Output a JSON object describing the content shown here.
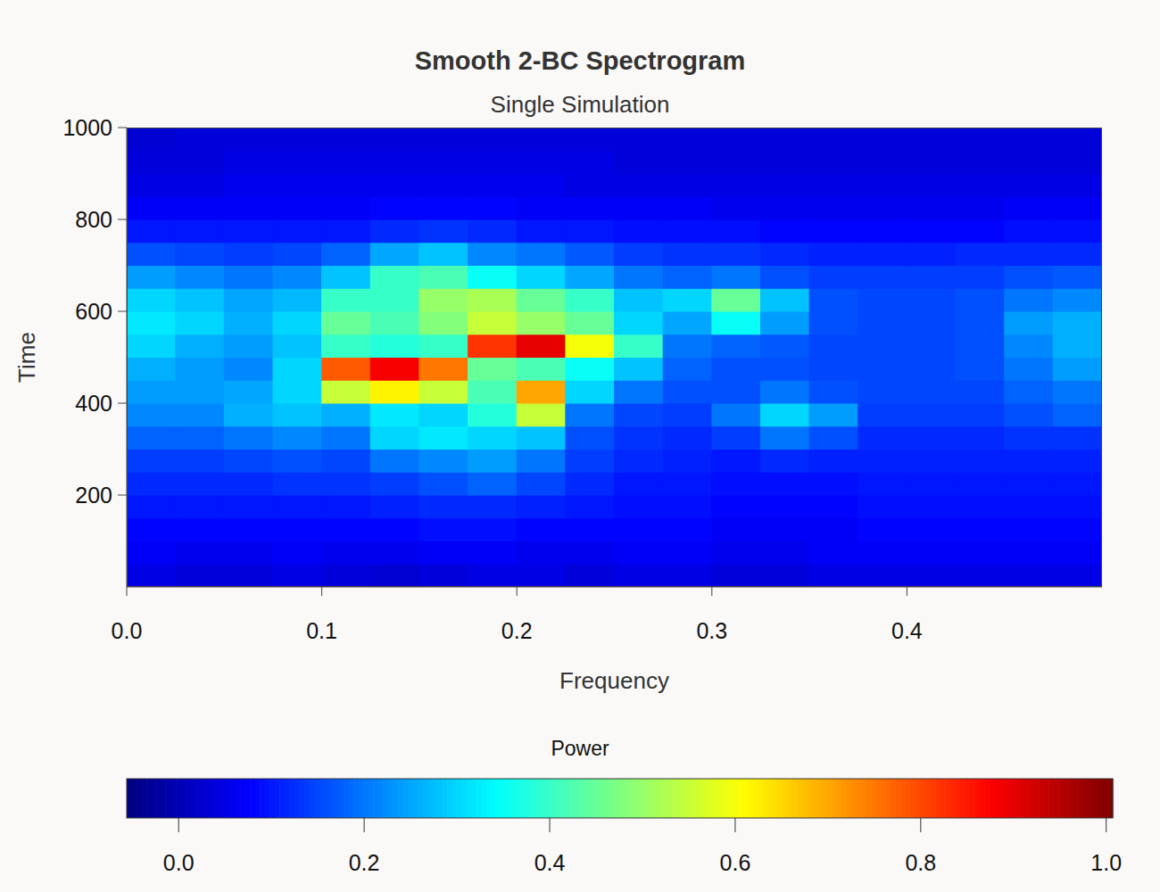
{
  "chart_data": {
    "type": "heatmap",
    "title": "Smooth 2-BC Spectrogram",
    "subtitle": "Single Simulation",
    "x_label": "Frequency",
    "y_label": "Time",
    "colorbar_title": "Power",
    "xlim": [
      0,
      0.5
    ],
    "xticks": [
      {
        "value": 0,
        "label": "0.0"
      },
      0.1,
      0.2,
      0.3,
      0.4
    ],
    "ylim": [
      0,
      1000
    ],
    "yticks": [
      200,
      400,
      600,
      800,
      1000
    ],
    "colorbar_range": [
      -0.056,
      1.007
    ],
    "colorbar_ticks": [
      {
        "value": 0,
        "label": "0.0"
      },
      0.2,
      0.4,
      0.6,
      0.8,
      {
        "value": 1,
        "label": "1.0"
      }
    ],
    "x": [
      0.0125,
      0.0375,
      0.0625,
      0.0875,
      0.1125,
      0.1375,
      0.1625,
      0.1875,
      0.2125,
      0.2375,
      0.2625,
      0.2875,
      0.3125,
      0.3375,
      0.3625,
      0.3875,
      0.4125,
      0.4375,
      0.4625,
      0.4875
    ],
    "y": [
      25,
      75,
      125,
      175,
      225,
      275,
      325,
      375,
      425,
      475,
      525,
      575,
      625,
      675,
      725,
      775,
      825,
      875,
      925,
      975
    ],
    "z": [
      [
        0.05,
        0.04,
        0.04,
        0.05,
        0.04,
        0.03,
        0.04,
        0.05,
        0.05,
        0.04,
        0.05,
        0.05,
        0.04,
        0.04,
        0.05,
        0.05,
        0.05,
        0.05,
        0.05,
        0.05
      ],
      [
        0.07,
        0.06,
        0.06,
        0.07,
        0.06,
        0.06,
        0.07,
        0.07,
        0.06,
        0.06,
        0.07,
        0.07,
        0.06,
        0.06,
        0.07,
        0.07,
        0.07,
        0.07,
        0.07,
        0.07
      ],
      [
        0.08,
        0.08,
        0.08,
        0.08,
        0.08,
        0.08,
        0.09,
        0.09,
        0.08,
        0.08,
        0.08,
        0.08,
        0.07,
        0.07,
        0.07,
        0.08,
        0.08,
        0.08,
        0.08,
        0.08
      ],
      [
        0.1,
        0.1,
        0.1,
        0.1,
        0.1,
        0.11,
        0.12,
        0.12,
        0.11,
        0.1,
        0.09,
        0.09,
        0.08,
        0.08,
        0.08,
        0.09,
        0.09,
        0.09,
        0.09,
        0.09
      ],
      [
        0.12,
        0.12,
        0.12,
        0.13,
        0.13,
        0.14,
        0.16,
        0.18,
        0.15,
        0.12,
        0.1,
        0.1,
        0.09,
        0.09,
        0.09,
        0.1,
        0.1,
        0.1,
        0.1,
        0.1
      ],
      [
        0.14,
        0.14,
        0.15,
        0.16,
        0.15,
        0.2,
        0.22,
        0.24,
        0.2,
        0.14,
        0.12,
        0.11,
        0.1,
        0.12,
        0.11,
        0.11,
        0.11,
        0.11,
        0.11,
        0.11
      ],
      [
        0.18,
        0.18,
        0.2,
        0.22,
        0.2,
        0.3,
        0.32,
        0.3,
        0.28,
        0.16,
        0.13,
        0.12,
        0.14,
        0.2,
        0.16,
        0.12,
        0.12,
        0.12,
        0.13,
        0.13
      ],
      [
        0.22,
        0.22,
        0.26,
        0.28,
        0.26,
        0.32,
        0.3,
        0.38,
        0.55,
        0.2,
        0.15,
        0.14,
        0.2,
        0.3,
        0.24,
        0.14,
        0.14,
        0.14,
        0.16,
        0.18
      ],
      [
        0.24,
        0.24,
        0.25,
        0.3,
        0.55,
        0.62,
        0.55,
        0.42,
        0.7,
        0.3,
        0.2,
        0.16,
        0.16,
        0.2,
        0.16,
        0.15,
        0.15,
        0.15,
        0.18,
        0.2
      ],
      [
        0.26,
        0.24,
        0.22,
        0.3,
        0.78,
        0.88,
        0.75,
        0.45,
        0.42,
        0.35,
        0.28,
        0.18,
        0.16,
        0.16,
        0.15,
        0.15,
        0.15,
        0.16,
        0.2,
        0.24
      ],
      [
        0.3,
        0.26,
        0.24,
        0.28,
        0.4,
        0.38,
        0.4,
        0.82,
        0.9,
        0.6,
        0.4,
        0.2,
        0.18,
        0.17,
        0.15,
        0.15,
        0.15,
        0.16,
        0.22,
        0.26
      ],
      [
        0.32,
        0.3,
        0.26,
        0.3,
        0.45,
        0.42,
        0.48,
        0.55,
        0.5,
        0.45,
        0.3,
        0.25,
        0.35,
        0.24,
        0.16,
        0.15,
        0.15,
        0.16,
        0.24,
        0.26
      ],
      [
        0.3,
        0.28,
        0.25,
        0.27,
        0.4,
        0.4,
        0.5,
        0.52,
        0.45,
        0.4,
        0.28,
        0.3,
        0.45,
        0.28,
        0.16,
        0.15,
        0.15,
        0.16,
        0.2,
        0.22
      ],
      [
        0.24,
        0.22,
        0.2,
        0.22,
        0.28,
        0.4,
        0.42,
        0.35,
        0.3,
        0.25,
        0.2,
        0.18,
        0.2,
        0.16,
        0.14,
        0.14,
        0.14,
        0.14,
        0.16,
        0.17
      ],
      [
        0.16,
        0.15,
        0.14,
        0.15,
        0.18,
        0.25,
        0.28,
        0.22,
        0.2,
        0.17,
        0.14,
        0.13,
        0.13,
        0.12,
        0.11,
        0.11,
        0.11,
        0.12,
        0.12,
        0.12
      ],
      [
        0.1,
        0.1,
        0.1,
        0.1,
        0.1,
        0.12,
        0.13,
        0.12,
        0.1,
        0.1,
        0.09,
        0.09,
        0.09,
        0.08,
        0.08,
        0.08,
        0.08,
        0.08,
        0.09,
        0.09
      ],
      [
        0.07,
        0.07,
        0.07,
        0.07,
        0.07,
        0.08,
        0.08,
        0.08,
        0.07,
        0.07,
        0.07,
        0.07,
        0.06,
        0.06,
        0.06,
        0.06,
        0.06,
        0.06,
        0.07,
        0.07
      ],
      [
        0.05,
        0.05,
        0.06,
        0.06,
        0.06,
        0.06,
        0.06,
        0.06,
        0.06,
        0.05,
        0.05,
        0.05,
        0.05,
        0.05,
        0.05,
        0.05,
        0.05,
        0.05,
        0.05,
        0.05
      ],
      [
        0.04,
        0.04,
        0.05,
        0.05,
        0.05,
        0.05,
        0.05,
        0.05,
        0.05,
        0.05,
        0.04,
        0.04,
        0.04,
        0.04,
        0.04,
        0.04,
        0.04,
        0.04,
        0.04,
        0.04
      ],
      [
        0.03,
        0.04,
        0.04,
        0.04,
        0.04,
        0.04,
        0.04,
        0.04,
        0.04,
        0.04,
        0.04,
        0.04,
        0.04,
        0.04,
        0.04,
        0.04,
        0.04,
        0.04,
        0.04,
        0.04
      ]
    ]
  }
}
